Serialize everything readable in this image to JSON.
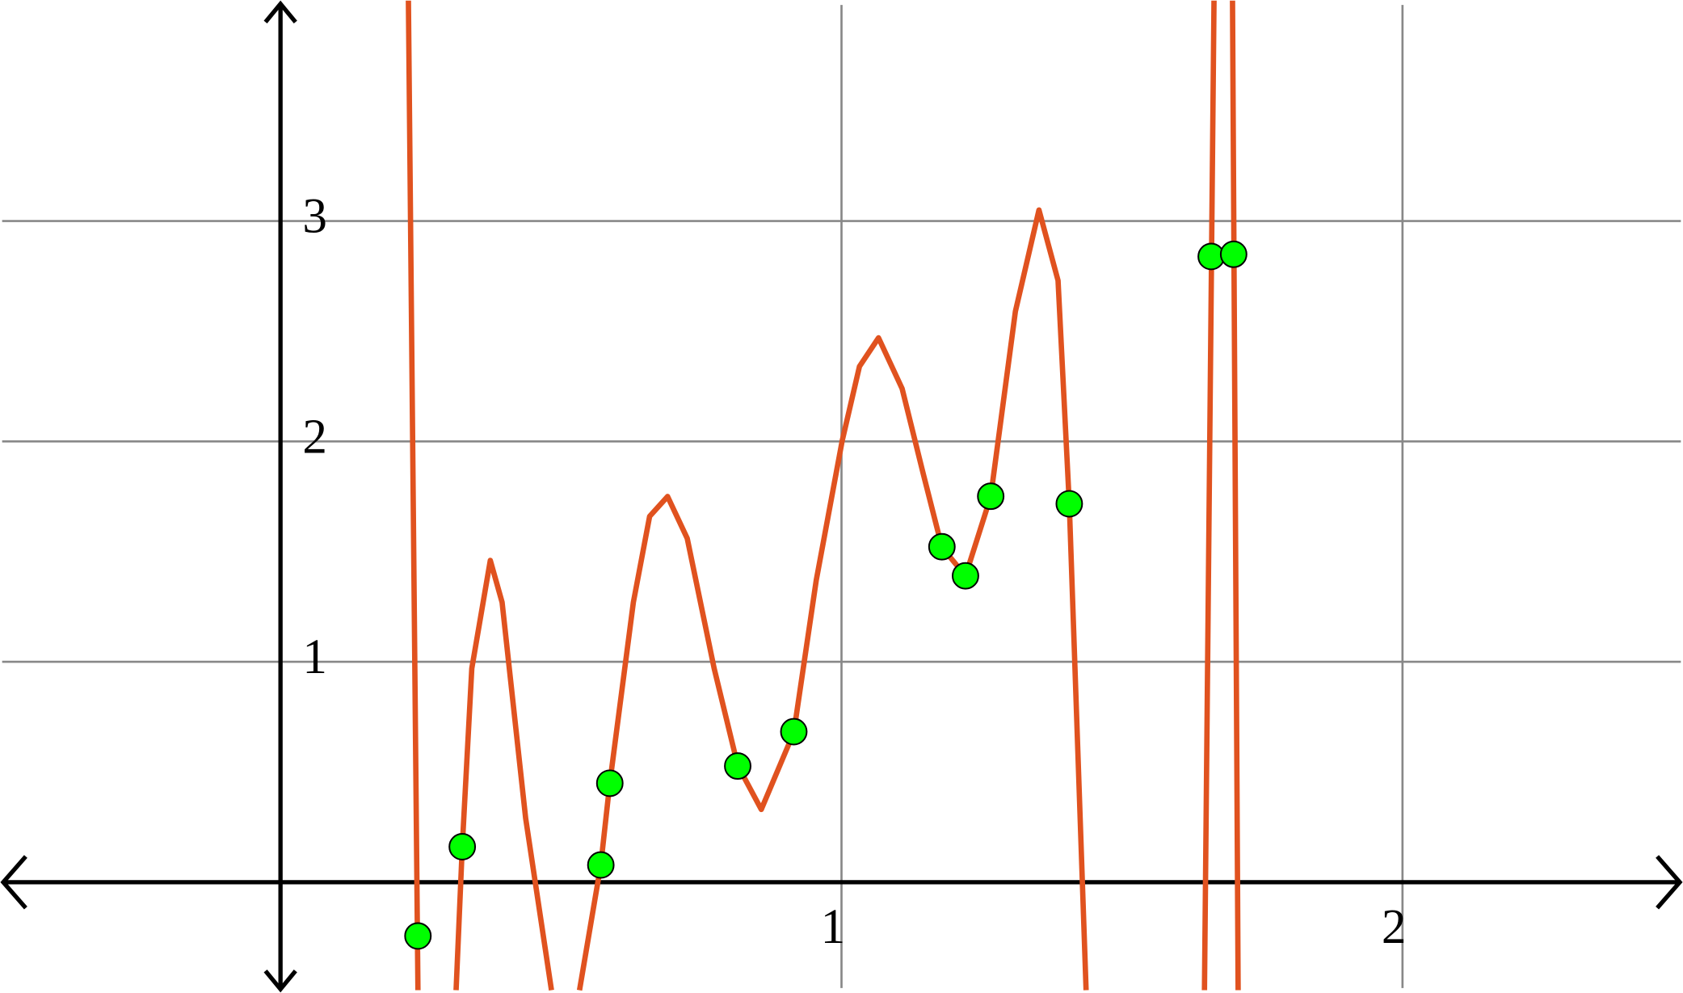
{
  "chart_data": {
    "type": "scatter",
    "xlim": [
      -0.5,
      2.5
    ],
    "ylim": [
      -0.5,
      4
    ],
    "xticks": [
      1,
      2
    ],
    "yticks": [
      1,
      2,
      3
    ],
    "grid": true,
    "series": [
      {
        "type": "line",
        "color": "#e0521f",
        "x": [
          0.228,
          0.245,
          null,
          0.313,
          0.324,
          0.341,
          0.374,
          0.395,
          0.437,
          0.483,
          null,
          0.533,
          0.571,
          0.587,
          0.629,
          0.658,
          0.69,
          0.725,
          0.773,
          0.815,
          0.857,
          0.915,
          0.955,
          1.001,
          1.032,
          1.066,
          1.108,
          1.146,
          1.179,
          1.221,
          1.266,
          1.31,
          1.352,
          1.386,
          1.406,
          1.436,
          null,
          1.647,
          1.664,
          null,
          1.697,
          1.707
        ],
        "values": [
          4.0,
          -0.49,
          null,
          -0.49,
          0.16,
          0.97,
          1.46,
          1.27,
          0.29,
          -0.49,
          null,
          -0.49,
          0.08,
          0.45,
          1.27,
          1.66,
          1.75,
          1.56,
          0.97,
          0.53,
          0.33,
          0.68,
          1.37,
          2.0,
          2.34,
          2.47,
          2.24,
          1.85,
          1.52,
          1.39,
          1.75,
          2.59,
          3.05,
          2.73,
          1.72,
          -0.49,
          null,
          -0.49,
          4.0,
          null,
          4.0,
          -0.49
        ]
      },
      {
        "type": "scatter",
        "color": "#00ff00",
        "x": [
          0.245,
          0.324,
          0.571,
          0.587,
          0.815,
          0.915,
          1.179,
          1.221,
          1.266,
          1.406,
          1.659,
          1.699
        ],
        "values": [
          -0.244,
          0.161,
          0.078,
          0.449,
          0.527,
          0.683,
          1.522,
          1.39,
          1.751,
          1.717,
          2.839,
          2.849
        ]
      }
    ]
  }
}
